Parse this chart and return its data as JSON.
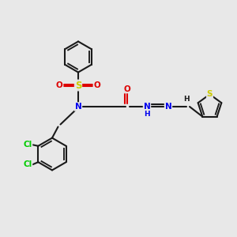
{
  "bg_color": "#e8e8e8",
  "bond_color": "#1a1a1a",
  "bond_width": 1.5,
  "atom_colors": {
    "N": "#0000ee",
    "O": "#dd0000",
    "S_sulfo": "#cccc00",
    "S_thio": "#cccc00",
    "Cl": "#00cc00",
    "C": "#1a1a1a",
    "H": "#0000ee"
  },
  "font_size": 7.5,
  "fig_size": [
    3.0,
    3.0
  ],
  "dpi": 100
}
